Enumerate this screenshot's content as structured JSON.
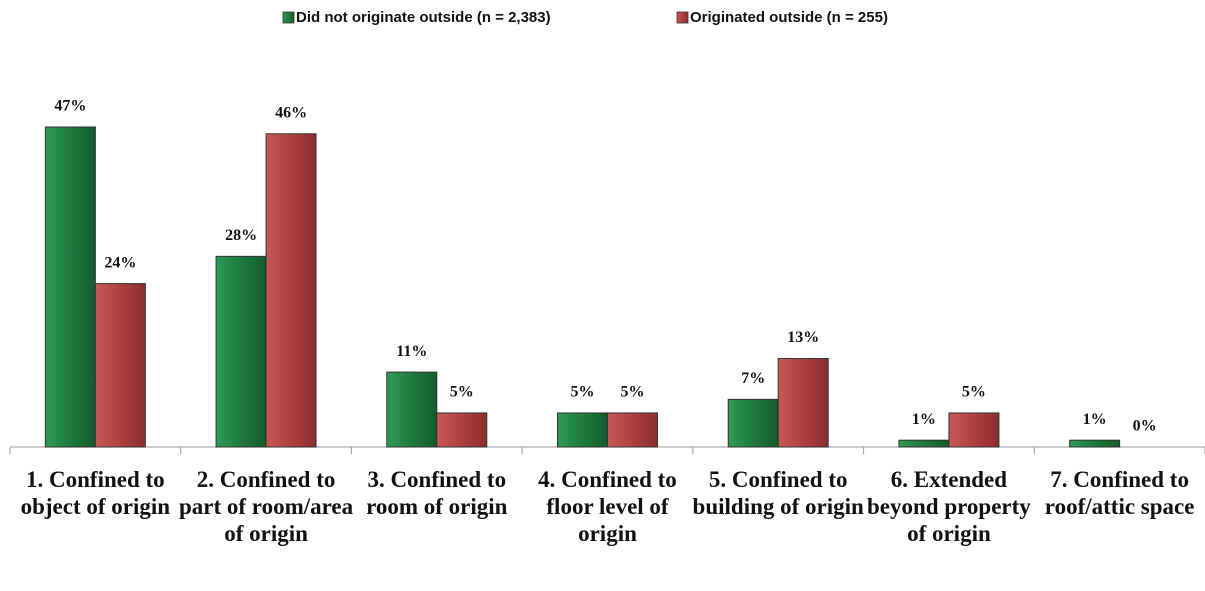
{
  "chart_data": {
    "type": "bar",
    "categories": [
      "1. Confined to object of origin",
      "2. Confined to part of room/area of origin",
      "3. Confined to room of origin",
      "4. Confined to floor level of origin",
      "5. Confined to building of origin",
      "6. Extended beyond property of origin",
      "7. Confined to roof/attic space"
    ],
    "series": [
      {
        "name": "Did not originate outside (n = 2,383)",
        "color": "#1e7a3e",
        "values": [
          47,
          28,
          11,
          5,
          7,
          1,
          1
        ],
        "value_labels": [
          "47%",
          "28%",
          "11%",
          "5%",
          "7%",
          "1%",
          "1%"
        ]
      },
      {
        "name": "Originated outside (n = 255)",
        "color": "#b04040",
        "values": [
          24,
          46,
          5,
          5,
          13,
          5,
          0
        ],
        "value_labels": [
          "24%",
          "46%",
          "5%",
          "5%",
          "13%",
          "5%",
          "0%"
        ]
      }
    ],
    "legend": "top"
  }
}
